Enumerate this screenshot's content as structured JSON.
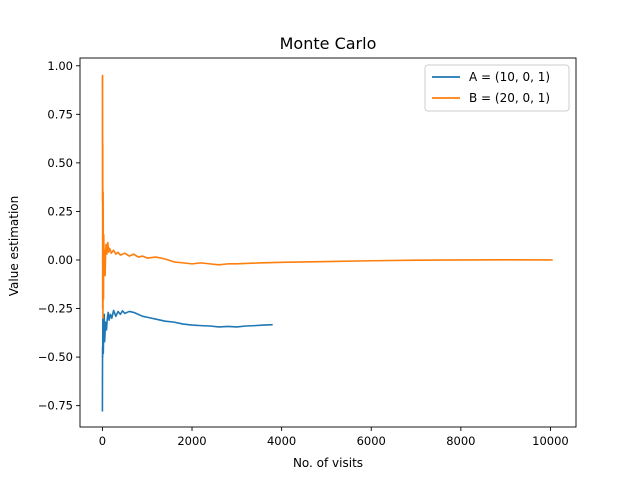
{
  "chart_data": {
    "type": "line",
    "title": "Monte Carlo",
    "xlabel": "No. of visits",
    "ylabel": "Value estimation",
    "xlim": [
      -500,
      10570
    ],
    "ylim": [
      -0.86,
      1.04
    ],
    "xticks": [
      0,
      2000,
      4000,
      6000,
      8000,
      10000
    ],
    "xtick_labels": [
      "0",
      "2000",
      "4000",
      "6000",
      "8000",
      "10000"
    ],
    "yticks": [
      -0.75,
      -0.5,
      -0.25,
      0.0,
      0.25,
      0.5,
      0.75,
      1.0
    ],
    "ytick_labels": [
      "−0.75",
      "−0.50",
      "−0.25",
      "0.00",
      "0.25",
      "0.50",
      "0.75",
      "1.00"
    ],
    "grid": false,
    "legend_position": "top-right",
    "series": [
      {
        "name": "A = (10, 0, 1)",
        "color": "#1f77b4",
        "points": [
          [
            0,
            -0.78
          ],
          [
            3,
            -0.45
          ],
          [
            6,
            -0.5
          ],
          [
            10,
            -0.3
          ],
          [
            15,
            -0.38
          ],
          [
            20,
            -0.48
          ],
          [
            30,
            -0.35
          ],
          [
            40,
            -0.28
          ],
          [
            50,
            -0.42
          ],
          [
            70,
            -0.32
          ],
          [
            90,
            -0.36
          ],
          [
            110,
            -0.3
          ],
          [
            130,
            -0.27
          ],
          [
            150,
            -0.31
          ],
          [
            180,
            -0.28
          ],
          [
            210,
            -0.3
          ],
          [
            250,
            -0.26
          ],
          [
            300,
            -0.29
          ],
          [
            350,
            -0.265
          ],
          [
            400,
            -0.28
          ],
          [
            450,
            -0.262
          ],
          [
            500,
            -0.275
          ],
          [
            600,
            -0.265
          ],
          [
            700,
            -0.27
          ],
          [
            800,
            -0.28
          ],
          [
            900,
            -0.29
          ],
          [
            1000,
            -0.295
          ],
          [
            1100,
            -0.3
          ],
          [
            1200,
            -0.305
          ],
          [
            1400,
            -0.315
          ],
          [
            1600,
            -0.32
          ],
          [
            1800,
            -0.33
          ],
          [
            2000,
            -0.335
          ],
          [
            2200,
            -0.338
          ],
          [
            2400,
            -0.34
          ],
          [
            2600,
            -0.345
          ],
          [
            2800,
            -0.342
          ],
          [
            3000,
            -0.345
          ],
          [
            3200,
            -0.34
          ],
          [
            3400,
            -0.338
          ],
          [
            3600,
            -0.335
          ],
          [
            3800,
            -0.333
          ]
        ]
      },
      {
        "name": "B = (20, 0, 1)",
        "color": "#ff7f0e",
        "points": [
          [
            0,
            0.95
          ],
          [
            2,
            0.3
          ],
          [
            4,
            0.95
          ],
          [
            6,
            -0.25
          ],
          [
            8,
            0.6
          ],
          [
            10,
            0.1
          ],
          [
            13,
            -0.3
          ],
          [
            16,
            0.35
          ],
          [
            20,
            0.05
          ],
          [
            25,
            -0.2
          ],
          [
            30,
            0.13
          ],
          [
            40,
            -0.05
          ],
          [
            50,
            0.05
          ],
          [
            60,
            -0.08
          ],
          [
            70,
            0.02
          ],
          [
            80,
            0.08
          ],
          [
            100,
            0.03
          ],
          [
            120,
            0.09
          ],
          [
            140,
            0.04
          ],
          [
            160,
            0.06
          ],
          [
            200,
            0.035
          ],
          [
            250,
            0.05
          ],
          [
            300,
            0.03
          ],
          [
            350,
            0.04
          ],
          [
            400,
            0.025
          ],
          [
            500,
            0.035
          ],
          [
            600,
            0.02
          ],
          [
            700,
            0.03
          ],
          [
            800,
            0.015
          ],
          [
            900,
            0.02
          ],
          [
            1000,
            0.01
          ],
          [
            1200,
            0.015
          ],
          [
            1400,
            0.005
          ],
          [
            1600,
            -0.01
          ],
          [
            1800,
            -0.015
          ],
          [
            2000,
            -0.02
          ],
          [
            2200,
            -0.015
          ],
          [
            2400,
            -0.02
          ],
          [
            2600,
            -0.025
          ],
          [
            2800,
            -0.02
          ],
          [
            3000,
            -0.02
          ],
          [
            3500,
            -0.015
          ],
          [
            4000,
            -0.012
          ],
          [
            5000,
            -0.008
          ],
          [
            6000,
            -0.004
          ],
          [
            7000,
            -0.001
          ],
          [
            8000,
            0.0
          ],
          [
            9000,
            0.001
          ],
          [
            10000,
            0.0
          ],
          [
            10050,
            0.0
          ]
        ]
      }
    ]
  }
}
